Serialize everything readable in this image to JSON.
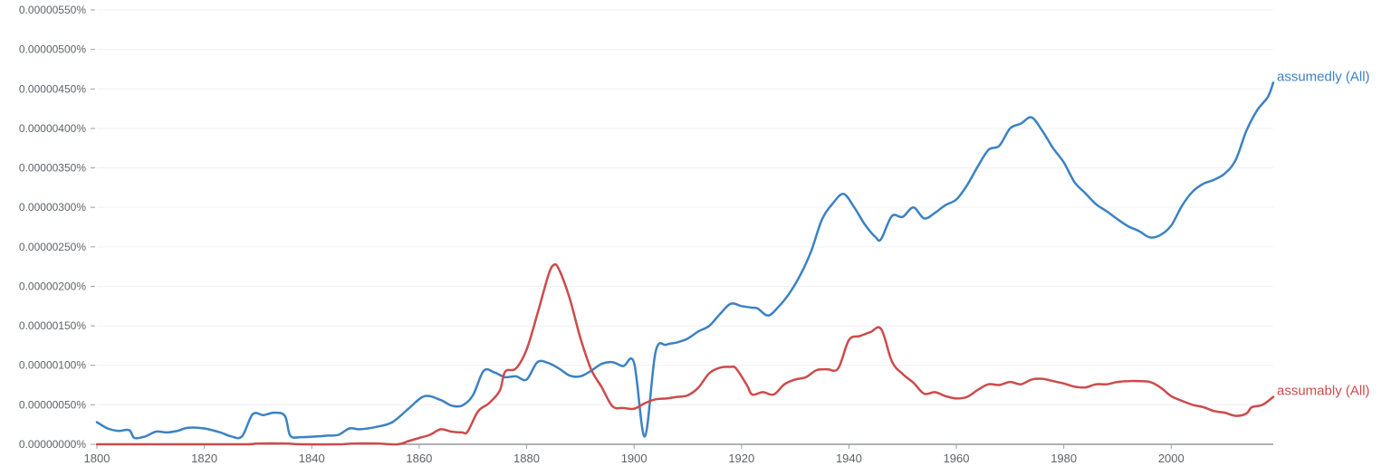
{
  "chart_data": {
    "type": "line",
    "title": "",
    "xlabel": "",
    "ylabel": "",
    "xlim": [
      1800,
      2019
    ],
    "ylim": [
      0,
      5.5e-06
    ],
    "grid": true,
    "legend": "inline-right",
    "y_ticks": [
      "0.00000000%",
      "0.00000050%",
      "0.00000100%",
      "0.00000150%",
      "0.00000200%",
      "0.00000250%",
      "0.00000300%",
      "0.00000350%",
      "0.00000400%",
      "0.00000450%",
      "0.00000500%",
      "0.00000550%"
    ],
    "y_tick_values": [
      0,
      5e-07,
      1e-06,
      1.5e-06,
      2e-06,
      2.5e-06,
      3e-06,
      3.5e-06,
      4e-06,
      4.5e-06,
      5e-06,
      5.5e-06
    ],
    "x_ticks": [
      "1800",
      "1820",
      "1840",
      "1860",
      "1880",
      "1900",
      "1920",
      "1940",
      "1960",
      "1980",
      "2000"
    ],
    "x_tick_values": [
      1800,
      1820,
      1840,
      1860,
      1880,
      1900,
      1920,
      1940,
      1960,
      1980,
      2000
    ],
    "series": [
      {
        "name": "assumedly (All)",
        "color": "#3b82c4",
        "points": [
          [
            1800,
            2.8e-07
          ],
          [
            1802,
            2e-07
          ],
          [
            1804,
            1.7e-07
          ],
          [
            1806,
            1.8e-07
          ],
          [
            1807,
            8e-08
          ],
          [
            1809,
            1e-07
          ],
          [
            1811,
            1.6e-07
          ],
          [
            1813,
            1.5e-07
          ],
          [
            1815,
            1.7e-07
          ],
          [
            1817,
            2.1e-07
          ],
          [
            1820,
            2e-07
          ],
          [
            1823,
            1.5e-07
          ],
          [
            1825,
            1e-07
          ],
          [
            1827,
            1e-07
          ],
          [
            1829,
            3.8e-07
          ],
          [
            1831,
            3.7e-07
          ],
          [
            1833,
            4e-07
          ],
          [
            1835,
            3.6e-07
          ],
          [
            1836,
            1.1e-07
          ],
          [
            1838,
            9e-08
          ],
          [
            1841,
            1e-07
          ],
          [
            1843,
            1.1e-07
          ],
          [
            1845,
            1.2e-07
          ],
          [
            1847,
            2e-07
          ],
          [
            1849,
            1.9e-07
          ],
          [
            1852,
            2.2e-07
          ],
          [
            1855,
            2.8e-07
          ],
          [
            1858,
            4.5e-07
          ],
          [
            1861,
            6.1e-07
          ],
          [
            1864,
            5.6e-07
          ],
          [
            1866,
            4.9e-07
          ],
          [
            1868,
            4.9e-07
          ],
          [
            1870,
            6.2e-07
          ],
          [
            1872,
            9.3e-07
          ],
          [
            1874,
            9.1e-07
          ],
          [
            1876,
            8.5e-07
          ],
          [
            1878,
            8.6e-07
          ],
          [
            1880,
            8.2e-07
          ],
          [
            1882,
            1.04e-06
          ],
          [
            1884,
            1.03e-06
          ],
          [
            1886,
            9.6e-07
          ],
          [
            1888,
            8.7e-07
          ],
          [
            1890,
            8.6e-07
          ],
          [
            1892,
            9.3e-07
          ],
          [
            1894,
            1.02e-06
          ],
          [
            1896,
            1.04e-06
          ],
          [
            1898,
            9.9e-07
          ],
          [
            1900,
            1.03e-06
          ],
          [
            1902,
            1e-07
          ],
          [
            1904,
            1.17e-06
          ],
          [
            1906,
            1.26e-06
          ],
          [
            1908,
            1.29e-06
          ],
          [
            1910,
            1.34e-06
          ],
          [
            1912,
            1.43e-06
          ],
          [
            1914,
            1.5e-06
          ],
          [
            1916,
            1.65e-06
          ],
          [
            1918,
            1.78e-06
          ],
          [
            1920,
            1.75e-06
          ],
          [
            1922,
            1.73e-06
          ],
          [
            1923,
            1.72e-06
          ],
          [
            1925,
            1.63e-06
          ],
          [
            1927,
            1.75e-06
          ],
          [
            1929,
            1.92e-06
          ],
          [
            1931,
            2.15e-06
          ],
          [
            1933,
            2.45e-06
          ],
          [
            1935,
            2.85e-06
          ],
          [
            1937,
            3.05e-06
          ],
          [
            1939,
            3.17e-06
          ],
          [
            1941,
            3e-06
          ],
          [
            1943,
            2.78e-06
          ],
          [
            1945,
            2.62e-06
          ],
          [
            1946,
            2.6e-06
          ],
          [
            1948,
            2.89e-06
          ],
          [
            1950,
            2.88e-06
          ],
          [
            1952,
            3e-06
          ],
          [
            1954,
            2.86e-06
          ],
          [
            1956,
            2.93e-06
          ],
          [
            1958,
            3.03e-06
          ],
          [
            1960,
            3.1e-06
          ],
          [
            1962,
            3.28e-06
          ],
          [
            1964,
            3.52e-06
          ],
          [
            1966,
            3.73e-06
          ],
          [
            1968,
            3.78e-06
          ],
          [
            1970,
            4e-06
          ],
          [
            1972,
            4.06e-06
          ],
          [
            1974,
            4.14e-06
          ],
          [
            1976,
            3.97e-06
          ],
          [
            1978,
            3.75e-06
          ],
          [
            1980,
            3.57e-06
          ],
          [
            1982,
            3.32e-06
          ],
          [
            1984,
            3.18e-06
          ],
          [
            1986,
            3.04e-06
          ],
          [
            1988,
            2.95e-06
          ],
          [
            1990,
            2.85e-06
          ],
          [
            1992,
            2.76e-06
          ],
          [
            1994,
            2.7e-06
          ],
          [
            1996,
            2.62e-06
          ],
          [
            1998,
            2.65e-06
          ],
          [
            2000,
            2.77e-06
          ],
          [
            2002,
            3.02e-06
          ],
          [
            2004,
            3.2e-06
          ],
          [
            2006,
            3.3e-06
          ],
          [
            2008,
            3.35e-06
          ],
          [
            2010,
            3.43e-06
          ],
          [
            2012,
            3.6e-06
          ],
          [
            2014,
            3.97e-06
          ],
          [
            2016,
            4.23e-06
          ],
          [
            2018,
            4.4e-06
          ],
          [
            2019,
            4.58e-06
          ]
        ]
      },
      {
        "name": "assumably (All)",
        "color": "#cc4b4b",
        "points": [
          [
            1800,
            0
          ],
          [
            1820,
            0
          ],
          [
            1828,
            0
          ],
          [
            1830,
            1e-08
          ],
          [
            1835,
            1e-08
          ],
          [
            1838,
            0
          ],
          [
            1845,
            0
          ],
          [
            1848,
            1e-08
          ],
          [
            1852,
            1e-08
          ],
          [
            1856,
            0
          ],
          [
            1858,
            4e-08
          ],
          [
            1860,
            8e-08
          ],
          [
            1862,
            1.2e-07
          ],
          [
            1864,
            1.9e-07
          ],
          [
            1866,
            1.6e-07
          ],
          [
            1868,
            1.5e-07
          ],
          [
            1869,
            1.6e-07
          ],
          [
            1871,
            4.2e-07
          ],
          [
            1873,
            5.2e-07
          ],
          [
            1875,
            6.8e-07
          ],
          [
            1876,
            9.2e-07
          ],
          [
            1878,
            9.6e-07
          ],
          [
            1880,
            1.2e-06
          ],
          [
            1882,
            1.65e-06
          ],
          [
            1884,
            2.13e-06
          ],
          [
            1885,
            2.27e-06
          ],
          [
            1886,
            2.22e-06
          ],
          [
            1888,
            1.85e-06
          ],
          [
            1890,
            1.35e-06
          ],
          [
            1892,
            9.5e-07
          ],
          [
            1894,
            7.2e-07
          ],
          [
            1896,
            4.8e-07
          ],
          [
            1898,
            4.6e-07
          ],
          [
            1900,
            4.5e-07
          ],
          [
            1902,
            5.2e-07
          ],
          [
            1904,
            5.7e-07
          ],
          [
            1906,
            5.8e-07
          ],
          [
            1908,
            6e-07
          ],
          [
            1910,
            6.2e-07
          ],
          [
            1912,
            7.2e-07
          ],
          [
            1914,
            9e-07
          ],
          [
            1916,
            9.7e-07
          ],
          [
            1918,
            9.8e-07
          ],
          [
            1919,
            9.6e-07
          ],
          [
            1921,
            7.5e-07
          ],
          [
            1922,
            6.3e-07
          ],
          [
            1924,
            6.6e-07
          ],
          [
            1926,
            6.3e-07
          ],
          [
            1928,
            7.6e-07
          ],
          [
            1930,
            8.2e-07
          ],
          [
            1932,
            8.5e-07
          ],
          [
            1934,
            9.4e-07
          ],
          [
            1936,
            9.5e-07
          ],
          [
            1938,
            9.6e-07
          ],
          [
            1940,
            1.32e-06
          ],
          [
            1942,
            1.37e-06
          ],
          [
            1944,
            1.42e-06
          ],
          [
            1946,
            1.46e-06
          ],
          [
            1948,
            1.05e-06
          ],
          [
            1950,
            8.9e-07
          ],
          [
            1952,
            7.8e-07
          ],
          [
            1954,
            6.4e-07
          ],
          [
            1956,
            6.6e-07
          ],
          [
            1958,
            6.1e-07
          ],
          [
            1960,
            5.8e-07
          ],
          [
            1962,
            6e-07
          ],
          [
            1964,
            6.9e-07
          ],
          [
            1966,
            7.6e-07
          ],
          [
            1968,
            7.5e-07
          ],
          [
            1970,
            7.9e-07
          ],
          [
            1972,
            7.6e-07
          ],
          [
            1974,
            8.2e-07
          ],
          [
            1976,
            8.3e-07
          ],
          [
            1978,
            8e-07
          ],
          [
            1980,
            7.7e-07
          ],
          [
            1982,
            7.3e-07
          ],
          [
            1984,
            7.2e-07
          ],
          [
            1986,
            7.6e-07
          ],
          [
            1988,
            7.6e-07
          ],
          [
            1990,
            7.9e-07
          ],
          [
            1992,
            8e-07
          ],
          [
            1994,
            8e-07
          ],
          [
            1996,
            7.9e-07
          ],
          [
            1998,
            7.2e-07
          ],
          [
            2000,
            6.1e-07
          ],
          [
            2002,
            5.5e-07
          ],
          [
            2004,
            5e-07
          ],
          [
            2006,
            4.7e-07
          ],
          [
            2008,
            4.2e-07
          ],
          [
            2010,
            4e-07
          ],
          [
            2012,
            3.6e-07
          ],
          [
            2014,
            3.9e-07
          ],
          [
            2015,
            4.7e-07
          ],
          [
            2017,
            5e-07
          ],
          [
            2019,
            6e-07
          ]
        ]
      }
    ]
  }
}
